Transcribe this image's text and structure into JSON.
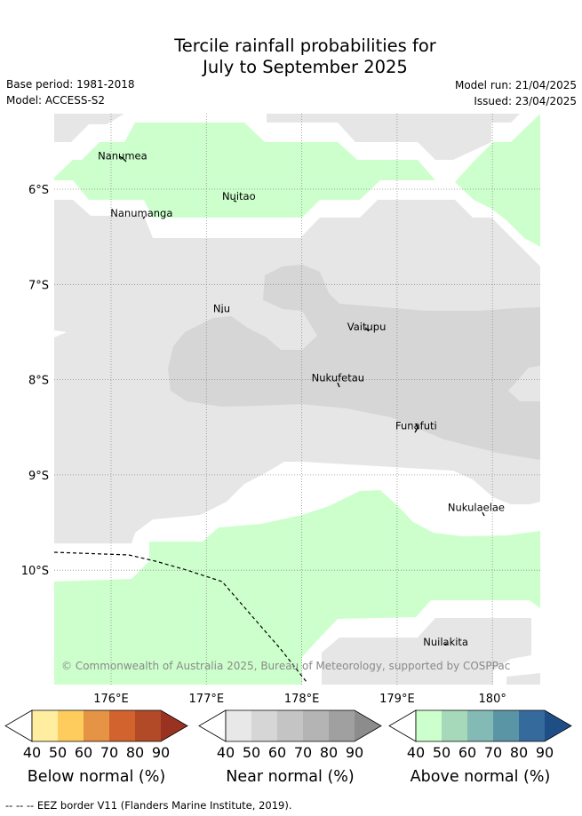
{
  "title": {
    "line1": "Tercile rainfall probabilities for",
    "line2": "July to September 2025"
  },
  "meta": {
    "base_period": "Base period: 1981-2018",
    "model": "Model: ACCESS-S2",
    "model_run": "Model run: 21/04/2025",
    "issued": "Issued: 23/04/2025"
  },
  "map": {
    "lon_ticks": [
      {
        "value": 176,
        "label": "176°E"
      },
      {
        "value": 177,
        "label": "177°E"
      },
      {
        "value": 178,
        "label": "178°E"
      },
      {
        "value": 179,
        "label": "179°E"
      },
      {
        "value": 180,
        "label": "180°"
      }
    ],
    "lat_ticks": [
      {
        "value": -6,
        "label": "6°S"
      },
      {
        "value": -7,
        "label": "7°S"
      },
      {
        "value": -8,
        "label": "8°S"
      },
      {
        "value": -9,
        "label": "9°S"
      },
      {
        "value": -10,
        "label": "10°S"
      }
    ],
    "places": [
      {
        "name": "Nanumea",
        "lon": 176.12,
        "lat": -5.69
      },
      {
        "name": "Nuitao",
        "lon": 177.34,
        "lat": -6.11
      },
      {
        "name": "Nanumanga",
        "lon": 176.32,
        "lat": -6.29
      },
      {
        "name": "Niu",
        "lon": 177.16,
        "lat": -7.29
      },
      {
        "name": "Vaitupu",
        "lon": 178.68,
        "lat": -7.48
      },
      {
        "name": "Nukufetau",
        "lon": 178.38,
        "lat": -8.02
      },
      {
        "name": "Funafuti",
        "lon": 179.2,
        "lat": -8.52
      },
      {
        "name": "Nukulaelae",
        "lon": 179.83,
        "lat": -9.38
      },
      {
        "name": "Nuilakita",
        "lon": 179.51,
        "lat": -10.79
      }
    ],
    "copyright": "© Commonwealth of Australia 2025, Bureau of Meteorology, supported by COSPPac"
  },
  "colorbars": [
    {
      "title": "Below normal (%)",
      "colors": [
        "#ffffff",
        "#ffeda0",
        "#fecc5c",
        "#e49444",
        "#d2622e",
        "#b24a28",
        "#9a3222"
      ],
      "labels": [
        "40",
        "50",
        "60",
        "70",
        "80",
        "90"
      ]
    },
    {
      "title": "Near normal (%)",
      "colors": [
        "#ffffff",
        "#e8e8e8",
        "#d6d6d6",
        "#c4c4c4",
        "#b4b4b4",
        "#a0a0a0",
        "#8c8c8c"
      ],
      "labels": [
        "40",
        "50",
        "60",
        "70",
        "80",
        "90"
      ]
    },
    {
      "title": "Above normal (%)",
      "colors": [
        "#ffffff",
        "#ccffcc",
        "#a6d9b9",
        "#84bab5",
        "#5a95a5",
        "#356a9d",
        "#1f4e87"
      ],
      "labels": [
        "40",
        "50",
        "60",
        "70",
        "80",
        "90"
      ]
    }
  ],
  "legend": {
    "eez_note": "-- -- -- EEZ border V11 (Flanders Marine Institute, 2019)."
  },
  "colors": {
    "above_normal_40_50": "#ccffcc",
    "near_normal_40_50": "#e6e6e6",
    "near_normal_50_60": "#d6d6d6",
    "gridline": "#8c8c8c"
  }
}
